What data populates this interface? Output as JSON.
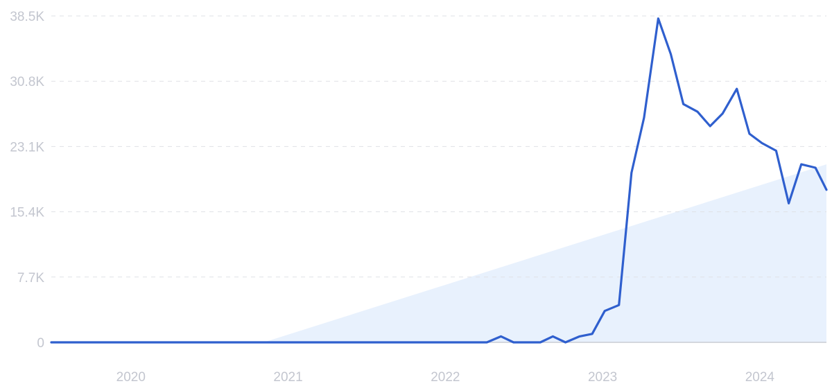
{
  "chart_data": {
    "type": "line",
    "title": "",
    "xlabel": "",
    "ylabel": "",
    "colors": {
      "line": "#2f5fce",
      "trend_fill": "#e8f1fd",
      "grid": "#dfe1e6",
      "tick_text": "#c3c6cf"
    },
    "y_ticks": [
      {
        "value": 0,
        "label": "0"
      },
      {
        "value": 7700,
        "label": "7.7K"
      },
      {
        "value": 15400,
        "label": "15.4K"
      },
      {
        "value": 23100,
        "label": "23.1K"
      },
      {
        "value": 30800,
        "label": "30.8K"
      },
      {
        "value": 38500,
        "label": "38.5K"
      }
    ],
    "ylim": [
      0,
      38500
    ],
    "x_ticks": [
      {
        "value": 2020.0,
        "label": "2020"
      },
      {
        "value": 2021.0,
        "label": "2021"
      },
      {
        "value": 2022.0,
        "label": "2022"
      },
      {
        "value": 2023.0,
        "label": "2023"
      },
      {
        "value": 2024.0,
        "label": "2024"
      }
    ],
    "xlim": [
      2019.56,
      2024.49
    ],
    "grid": true,
    "legend": "none",
    "series": [
      {
        "x": [
          2019.56,
          2022.33,
          2022.42,
          2022.5,
          2022.58,
          2022.67,
          2022.75,
          2022.83,
          2022.92,
          2023.0,
          2023.08,
          2023.17,
          2023.25,
          2023.33,
          2023.42,
          2023.5,
          2023.58,
          2023.67,
          2023.75,
          2023.83,
          2023.92,
          2024.0,
          2024.08,
          2024.17,
          2024.25,
          2024.33,
          2024.42,
          2024.49
        ],
        "y": [
          0,
          0,
          700,
          0,
          0,
          0,
          700,
          0,
          700,
          1000,
          3700,
          4400,
          20000,
          26500,
          38200,
          34000,
          28100,
          27200,
          25500,
          27000,
          29900,
          24600,
          23500,
          22600,
          16400,
          21000,
          20600,
          18000
        ]
      }
    ],
    "trend": {
      "x": [
        2020.91,
        2024.49
      ],
      "y": [
        0,
        21000
      ]
    }
  }
}
